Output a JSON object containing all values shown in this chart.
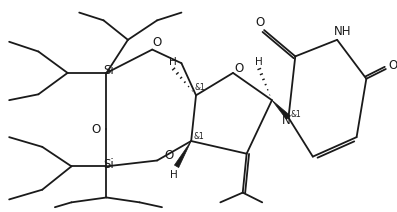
{
  "bg_color": "#ffffff",
  "line_color": "#1a1a1a",
  "line_width": 1.3,
  "font_size": 7.5,
  "figsize": [
    3.97,
    2.12
  ],
  "dpi": 100,
  "xlim": [
    0,
    7.94
  ],
  "ylim": [
    0,
    4.24
  ]
}
